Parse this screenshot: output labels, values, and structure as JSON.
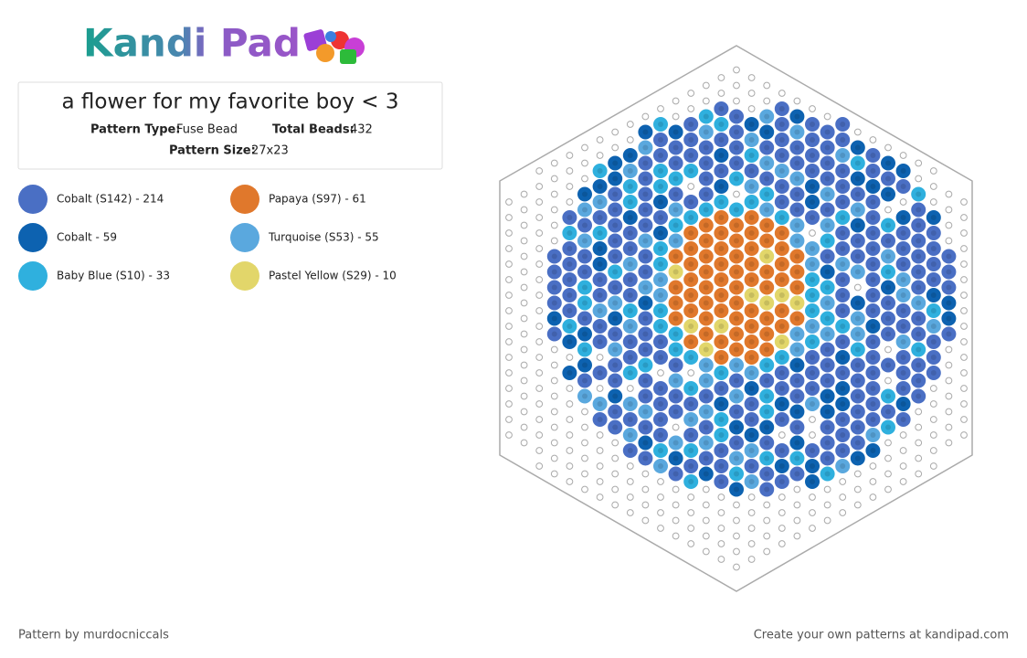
{
  "header": {
    "logo": "Kandi Pad",
    "title": "a flower for my favorite boy < 3",
    "details": [
      {
        "label": "Pattern Type:",
        "value": "Fuse Bead"
      },
      {
        "label": "Total Beads:",
        "value": "432"
      },
      {
        "label": "Pattern Size:",
        "value": "27x23"
      }
    ]
  },
  "legend": [
    {
      "label": "Cobalt (S142) - 214",
      "color": "#4a6fc4"
    },
    {
      "label": "Papaya (S97) - 61",
      "color": "#e0782c"
    },
    {
      "label": "Cobalt - 59",
      "color": "#0d62b0"
    },
    {
      "label": "Turquoise (S53) - 55",
      "color": "#5aa8de"
    },
    {
      "label": "Baby Blue (S10) - 33",
      "color": "#2fb0de"
    },
    {
      "label": "Pastel Yellow (S29) - 10",
      "color": "#e2d66a"
    }
  ],
  "footer": {
    "credit": "Pattern by murdocniccals",
    "link": "Create your own patterns at kandipad.com"
  }
}
